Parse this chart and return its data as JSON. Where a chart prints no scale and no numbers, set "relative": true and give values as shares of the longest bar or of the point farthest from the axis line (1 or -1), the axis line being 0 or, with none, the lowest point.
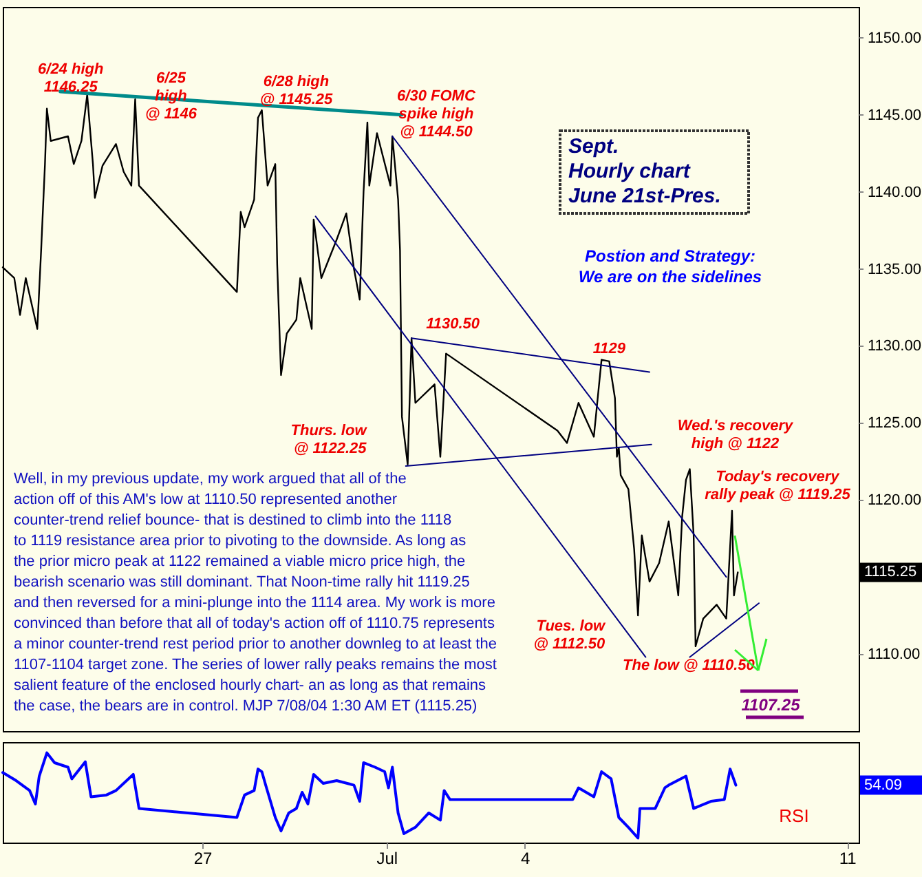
{
  "chart_data": [
    {
      "type": "line",
      "title": "Sept.\nHourly chart\nJune 21st-Pres.",
      "xlim": [
        "--06-22T16:00",
        "--07-11T06:00"
      ],
      "ylim": [
        1105,
        1152
      ],
      "yticks": [
        {
          "value": 1110,
          "label": "1110.00"
        },
        {
          "value": 1120,
          "label": "1120.00"
        },
        {
          "value": 1125,
          "label": "1125.00"
        },
        {
          "value": 1130,
          "label": "1130.00"
        },
        {
          "value": 1135,
          "label": "1135.00"
        },
        {
          "value": 1140,
          "label": "1140.00"
        },
        {
          "value": 1145,
          "label": "1145.00"
        },
        {
          "value": 1150,
          "label": "1150.00"
        }
      ],
      "tick_labels": "y",
      "series": [
        {
          "color": "#000000",
          "x": [
            "--06-22T16:00",
            "--06-22T22:00",
            "--06-23T01:00",
            "--06-23T04:00",
            "--06-23T10:00",
            "--06-23T12:00",
            "--06-23T14:00",
            "--06-23T15:00",
            "--06-23T17:00",
            "--06-24T02:00",
            "--06-24T05:00",
            "--06-24T09:00",
            "--06-24T12:00",
            "--06-24T15:00",
            "--06-24T16:00",
            "--06-24T20:00",
            "--06-25T03:00",
            "--06-25T07:00",
            "--06-25T11:00",
            "--06-25T13:00",
            "--06-25T15:00",
            "--06-27T18:00",
            "--06-27T20:00",
            "--06-27T22:00",
            "--06-28T03:00",
            "--06-28T05:00",
            "--06-28T07:00",
            "--06-28T10:00",
            "--06-28T14:00",
            "--06-28T15:00",
            "--06-28T17:00",
            "--06-28T20:00",
            "--06-29T01:00",
            "--06-29T03:00",
            "--06-29T09:00",
            "--06-29T10:00",
            "--06-29T14:00",
            "--06-29T22:00",
            "--06-30T03:00",
            "--06-30T07:00",
            "--06-30T10:00",
            "--06-30T12:00",
            "--06-30T14:00",
            "--06-30T15:00",
            "--06-30T19:00",
            "--07-01T02:00",
            "--07-01T03:00",
            "--07-01T06:00",
            "--07-01T07:00",
            "--07-01T08:00",
            "--07-01T11:00",
            "--07-01T13:00",
            "--07-01T15:00",
            "--07-02T01:00",
            "--07-02T04:00",
            "--07-02T07:00",
            "--07-04T17:00",
            "--07-04T22:00",
            "--07-05T04:00",
            "--07-05T12:00",
            "--07-05T16:00",
            "--07-05T20:00",
            "--07-05T23:00",
            "--07-06T00:00",
            "--07-06T01:00",
            "--07-06T02:00",
            "--07-06T06:00",
            "--07-06T09:00",
            "--07-06T11:00",
            "--07-06T13:00",
            "--07-06T17:00",
            "--07-06T22:00",
            "--07-07T03:00",
            "--07-07T08:00",
            "--07-07T10:00",
            "--07-07T12:00",
            "--07-07T14:00",
            "--07-07T16:00",
            "--07-07T17:00",
            "--07-07T21:00",
            "--07-08T04:00",
            "--07-08T09:00",
            "--07-08T12:00",
            "--07-08T13:00",
            "--07-08T15:00"
          ],
          "values": [
            1135.1,
            1134.4,
            1132.0,
            1134.4,
            1131.1,
            1136.2,
            1141.8,
            1145.4,
            1143.3,
            1143.6,
            1141.8,
            1143.3,
            1146.3,
            1141.8,
            1139.6,
            1141.7,
            1143.1,
            1141.3,
            1140.4,
            1146,
            1140.4,
            1133.5,
            1138.7,
            1137.7,
            1139.5,
            1144.8,
            1145.3,
            1140.4,
            1141.8,
            1135.3,
            1128.1,
            1130.8,
            1131.7,
            1134.4,
            1131.1,
            1138.2,
            1134.4,
            1136.9,
            1138.6,
            1135,
            1133,
            1140,
            1144.5,
            1140.4,
            1143.8,
            1140.4,
            1143.6,
            1139.5,
            1136.2,
            1125.4,
            1122.3,
            1130.5,
            1126.3,
            1127.5,
            1122.8,
            1129.5,
            1124.5,
            1123.7,
            1126.3,
            1124.1,
            1129.1,
            1129,
            1126.6,
            1122.8,
            1123.4,
            1121.6,
            1120.7,
            1116.8,
            1112.5,
            1117.7,
            1114.7,
            1115.9,
            1118.6,
            1113.8,
            1118.9,
            1121.3,
            1122,
            1117.7,
            1110.5,
            1112.3,
            1113.2,
            1112.3,
            1119.3,
            1113.8,
            1115.3
          ]
        },
        {
          "color": "#008b8b",
          "x": [
            "--06-23T22:00",
            "--07-01T08:00"
          ],
          "values": [
            1146.5,
            1145
          ]
        },
        {
          "color": "#000080",
          "x": [
            "--07-01T03:00",
            "--07-08T09:00"
          ],
          "values": [
            1143.6,
            1115
          ]
        },
        {
          "color": "#000080",
          "x": [
            "--06-29T11:00",
            "--07-06T15:00"
          ],
          "values": [
            1138.4,
            1109.8
          ]
        },
        {
          "color": "#000080",
          "x": [
            "--07-01T13:00",
            "--07-06T17:00"
          ],
          "values": [
            1130.5,
            1128.3
          ]
        },
        {
          "color": "#000080",
          "x": [
            "--07-01T10:00",
            "--07-06T18:00"
          ],
          "values": [
            1122.2,
            1123.6
          ]
        },
        {
          "color": "#000080",
          "x": [
            "--07-07T14:00",
            "--07-09T02:00"
          ],
          "values": [
            1109.8,
            1113.3
          ]
        }
      ],
      "annotations": [
        {
          "text": "6/24 high\n1146.25",
          "x": "--06-24T12:00",
          "y": 1146.25
        },
        {
          "text": "6/25\nhigh\n@ 1146",
          "x": "--06-25T13:00",
          "y": 1146
        },
        {
          "text": "6/28 high\n@ 1145.25",
          "x": "--06-28T07:00",
          "y": 1145.25
        },
        {
          "text": "6/30 FOMC\nspike high\n@ 1144.50",
          "x": "--06-30T14:00",
          "y": 1144.5
        },
        {
          "text": "1130.50",
          "x": "--07-01T13:00",
          "y": 1130.5
        },
        {
          "text": "1129",
          "x": "--07-05T20:00",
          "y": 1129
        },
        {
          "text": "Thurs. low\n@ 1122.25",
          "x": "--07-01T11:00",
          "y": 1122.25
        },
        {
          "text": "Tues. low\n@ 1112.50",
          "x": "--07-06T11:00",
          "y": 1112.5
        },
        {
          "text": "The low @ 1110.50",
          "x": "--07-07T17:00",
          "y": 1110.5
        },
        {
          "text": "Wed.'s recovery\nhigh @ 1122",
          "x": "--07-07T14:00",
          "y": 1122
        },
        {
          "text": "Today's recovery\nrally peak @ 1119.25",
          "x": "--07-08T12:00",
          "y": 1119.25
        },
        "1107.25",
        "1115.25",
        "Postion and Strategy:\nWe are on the sidelines",
        "Well, in my previous update, my work argued that all of the\naction off of this AM's low at 1110.50 represented another\ncounter-trend relief bounce- that is destined to climb into the 1118\nto 1119 resistance area prior to pivoting to the downside. As long as\nthe prior micro peak at 1122 remained a viable micro price high, the\nbearish scenario was still dominant. That Noon-time rally hit 1119.25\nand then reversed for a mini-plunge into the 1114 area. My work is more\nconvinced than before that all of today's action off of 1110.75 represents\na minor counter-trend rest period prior to another downleg to at least the\n1107-1104 target zone. The series of lower rally peaks remains the most\nsalient feature of the enclosed hourly chart- an as long as that remains\nthe case, the bears are in control. MJP 7/08/04 1:30 AM ET (1115.25)"
      ]
    },
    {
      "type": "line",
      "relative": true,
      "xlim": [
        "--06-22T16:00",
        "--07-11T06:00"
      ],
      "xticks": [
        {
          "value": "--06-27",
          "label": "27"
        },
        {
          "value": "--07-01",
          "label": "Jul"
        },
        {
          "value": "--07-04",
          "label": "4"
        },
        {
          "value": "--07-11",
          "label": "11"
        }
      ],
      "tick_labels": "x",
      "series": [
        {
          "color": "#0000ff",
          "x": [
            "--06-22T16:00",
            "--06-22T23:00",
            "--06-23T06:00",
            "--06-23T09:00",
            "--06-23T11:00",
            "--06-23T15:00",
            "--06-23T19:00",
            "--06-24T02:00",
            "--06-24T04:00",
            "--06-24T11:00",
            "--06-24T14:00",
            "--06-24T22:00",
            "--06-25T03:00",
            "--06-25T12:00",
            "--06-25T15:00",
            "--06-27T18:00",
            "--06-27T22:00",
            "--06-28T03:00",
            "--06-28T05:00",
            "--06-28T07:00",
            "--06-28T09:00",
            "--06-28T14:00",
            "--06-28T17:00",
            "--06-28T21:00",
            "--06-29T01:00",
            "--06-29T04:00",
            "--06-29T07:00",
            "--06-29T10:00",
            "--06-29T15:00",
            "--06-29T22:00",
            "--06-30T07:00",
            "--06-30T10:00",
            "--06-30T12:00",
            "--06-30T18:00",
            "--06-30T23:00",
            "--07-01T01:00",
            "--07-01T03:00",
            "--07-01T06:00",
            "--07-01T09:00",
            "--07-01T15:00",
            "--07-01T22:00",
            "--07-02T04:00",
            "--07-02T06:00",
            "--07-02T09:00",
            "--07-05T01:00",
            "--07-05T04:00",
            "--07-05T12:00",
            "--07-05T16:00",
            "--07-05T21:00",
            "--07-06T01:00",
            "--07-06T06:00",
            "--07-06T11:00",
            "--07-06T12:00",
            "--07-06T20:00",
            "--07-07T01:00",
            "--07-07T03:00",
            "--07-07T12:00",
            "--07-07T16:00",
            "--07-08T01:00",
            "--07-08T08:00",
            "--07-08T11:00",
            "--07-08T14:00"
          ],
          "values": [
            0.78,
            0.69,
            0.58,
            0.43,
            0.74,
            1,
            0.89,
            0.84,
            0.71,
            0.9,
            0.51,
            0.53,
            0.58,
            0.76,
            0.38,
            0.28,
            0.53,
            0.58,
            0.82,
            0.79,
            0.64,
            0.28,
            0.13,
            0.33,
            0.38,
            0.56,
            0.43,
            0.76,
            0.66,
            0.69,
            0.64,
            0.46,
            0.89,
            0.84,
            0.79,
            0.61,
            0.84,
            0.33,
            0.1,
            0.17,
            0.33,
            0.25,
            0.58,
            0.48,
            0.48,
            0.61,
            0.51,
            0.79,
            0.71,
            0.28,
            0.17,
            0.05,
            0.38,
            0.38,
            0.61,
            0.64,
            0.74,
            0.38,
            0.46,
            0.48,
            0.82,
            0.64
          ]
        }
      ],
      "annotations": [
        "RSI",
        "54.09"
      ]
    }
  ]
}
